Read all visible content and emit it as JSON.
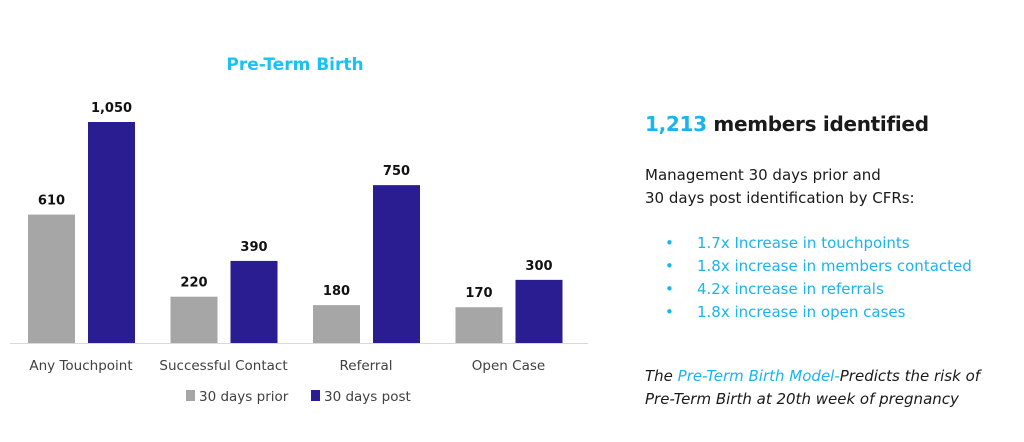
{
  "chart_data": {
    "type": "bar",
    "title": "Pre-Term Birth",
    "categories": [
      "Any Touchpoint",
      "Successful Contact",
      "Referral",
      "Open Case"
    ],
    "series": [
      {
        "name": "30 days prior",
        "values": [
          610,
          220,
          180,
          170
        ],
        "color": "#a6a6a6"
      },
      {
        "name": "30 days post",
        "values": [
          1050,
          390,
          750,
          300
        ],
        "color": "#2a1d91"
      }
    ],
    "data_labels": [
      [
        "610",
        "220",
        "180",
        "170"
      ],
      [
        "1,050",
        "390",
        "750",
        "300"
      ]
    ],
    "ylim": [
      0,
      1050
    ],
    "grid": false,
    "legend": "bottom",
    "title_color": "#18c3f4"
  },
  "summary": {
    "count": "1,213",
    "headline_rest": " members identified",
    "description_line1": "Management 30 days prior and",
    "description_line2": "30 days post identification by CFRs:",
    "bullets": [
      "1.7x Increase in touchpoints",
      "1.8x increase in members contacted",
      "4.2x increase in referrals",
      "1.8x increase in open cases"
    ],
    "bullet_glyph": "•",
    "model_prefix": "The ",
    "model_name": "Pre-Term Birth Model-",
    "model_rest": "Predicts the risk of",
    "model_line2": "Pre-Term Birth at 20th week of pregnancy",
    "accent_color": "#1ab4ee"
  }
}
